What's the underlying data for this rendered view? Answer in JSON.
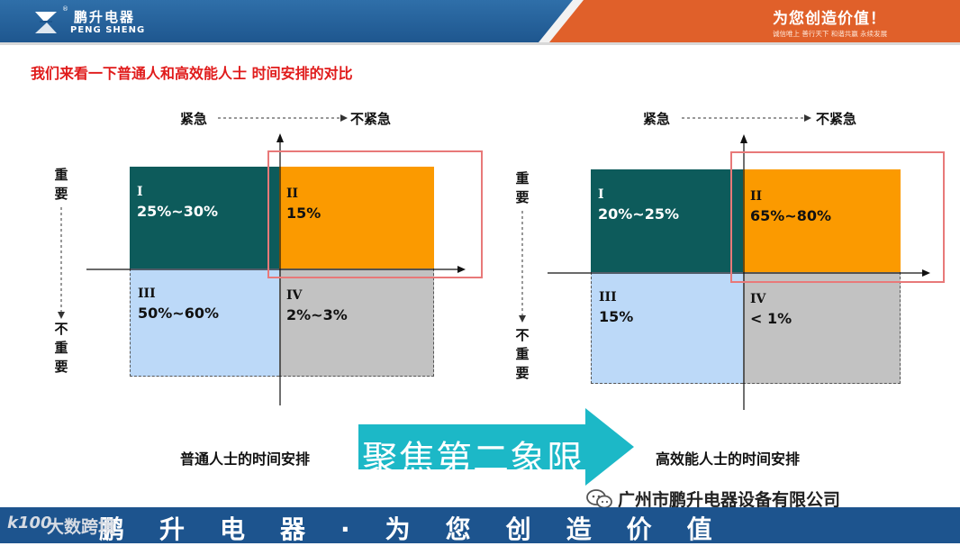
{
  "header": {
    "logo_cn": "鹏升电器",
    "logo_en": "PENG SHENG",
    "logo_reg": "®",
    "slogan": "为您创造价值！",
    "slogan_sub": "诚信唯上 善行天下 和谐共赢 永续发展"
  },
  "title": "我们来看一下普通人和高效能人士 时间安排的对比",
  "axis": {
    "urgent": "紧急",
    "not_urgent": "不紧急",
    "important": [
      "重",
      "要"
    ],
    "not_important": [
      "不",
      "重",
      "要"
    ]
  },
  "left": {
    "caption": "普通人士的时间安排",
    "q1": {
      "roman": "I",
      "value": "25%~30%"
    },
    "q2": {
      "roman": "II",
      "value": "15%"
    },
    "q3": {
      "roman": "III",
      "value": "50%~60%"
    },
    "q4": {
      "roman": "IV",
      "value": "2%~3%"
    }
  },
  "right": {
    "caption": "高效能人士的时间安排",
    "q1": {
      "roman": "I",
      "value": "20%~25%"
    },
    "q2": {
      "roman": "II",
      "value": "65%~80%"
    },
    "q3": {
      "roman": "III",
      "value": "15%"
    },
    "q4": {
      "roman": "IV",
      "value": "< 1%"
    }
  },
  "focus_text": "聚焦第二象限",
  "company": "广州市鹏升电器设备有限公司",
  "footer": "鹏升电器·为您创造价值",
  "watermark": {
    "logo": "k100",
    "text": "大数跨境"
  },
  "colors": {
    "header_blue": "#2f6fa9",
    "header_orange": "#e0602a",
    "title_red": "#e01b1b",
    "q1": "#0d5b5b",
    "q2": "#fb9a00",
    "q3": "#bcd9f8",
    "q4": "#c2c2c2",
    "highlight_box": "#e87979",
    "arrow": "#1cb8c7",
    "footer_blue": "#1d548e"
  }
}
